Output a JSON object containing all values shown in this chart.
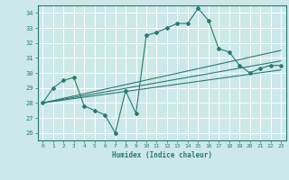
{
  "xlabel": "Humidex (Indice chaleur)",
  "bg_color": "#cce8e8",
  "line_color": "#2a7a70",
  "grid_color": "#ffffff",
  "xlim": [
    -0.5,
    23.5
  ],
  "ylim": [
    25.5,
    34.5
  ],
  "yticks": [
    26,
    27,
    28,
    29,
    30,
    31,
    32,
    33,
    34
  ],
  "xticks": [
    0,
    1,
    2,
    3,
    4,
    5,
    6,
    7,
    8,
    9,
    10,
    11,
    12,
    13,
    14,
    15,
    16,
    17,
    18,
    19,
    20,
    21,
    22,
    23
  ],
  "line1_x": [
    0,
    1,
    2,
    3,
    4,
    5,
    6,
    7,
    8,
    9,
    10,
    11,
    12,
    13,
    14,
    15,
    16,
    17,
    18,
    19,
    20,
    21,
    22,
    23
  ],
  "line1_y": [
    28.0,
    29.0,
    29.5,
    29.7,
    27.8,
    27.5,
    27.2,
    26.0,
    28.8,
    27.3,
    32.5,
    32.7,
    33.0,
    33.3,
    33.3,
    34.3,
    33.5,
    31.6,
    31.4,
    30.5,
    30.0,
    30.3,
    30.5,
    30.5
  ],
  "line2_x": [
    0,
    23
  ],
  "line2_y": [
    28.0,
    31.5
  ],
  "line3_x": [
    0,
    23
  ],
  "line3_y": [
    28.0,
    30.8
  ],
  "line4_x": [
    0,
    23
  ],
  "line4_y": [
    28.0,
    30.2
  ]
}
